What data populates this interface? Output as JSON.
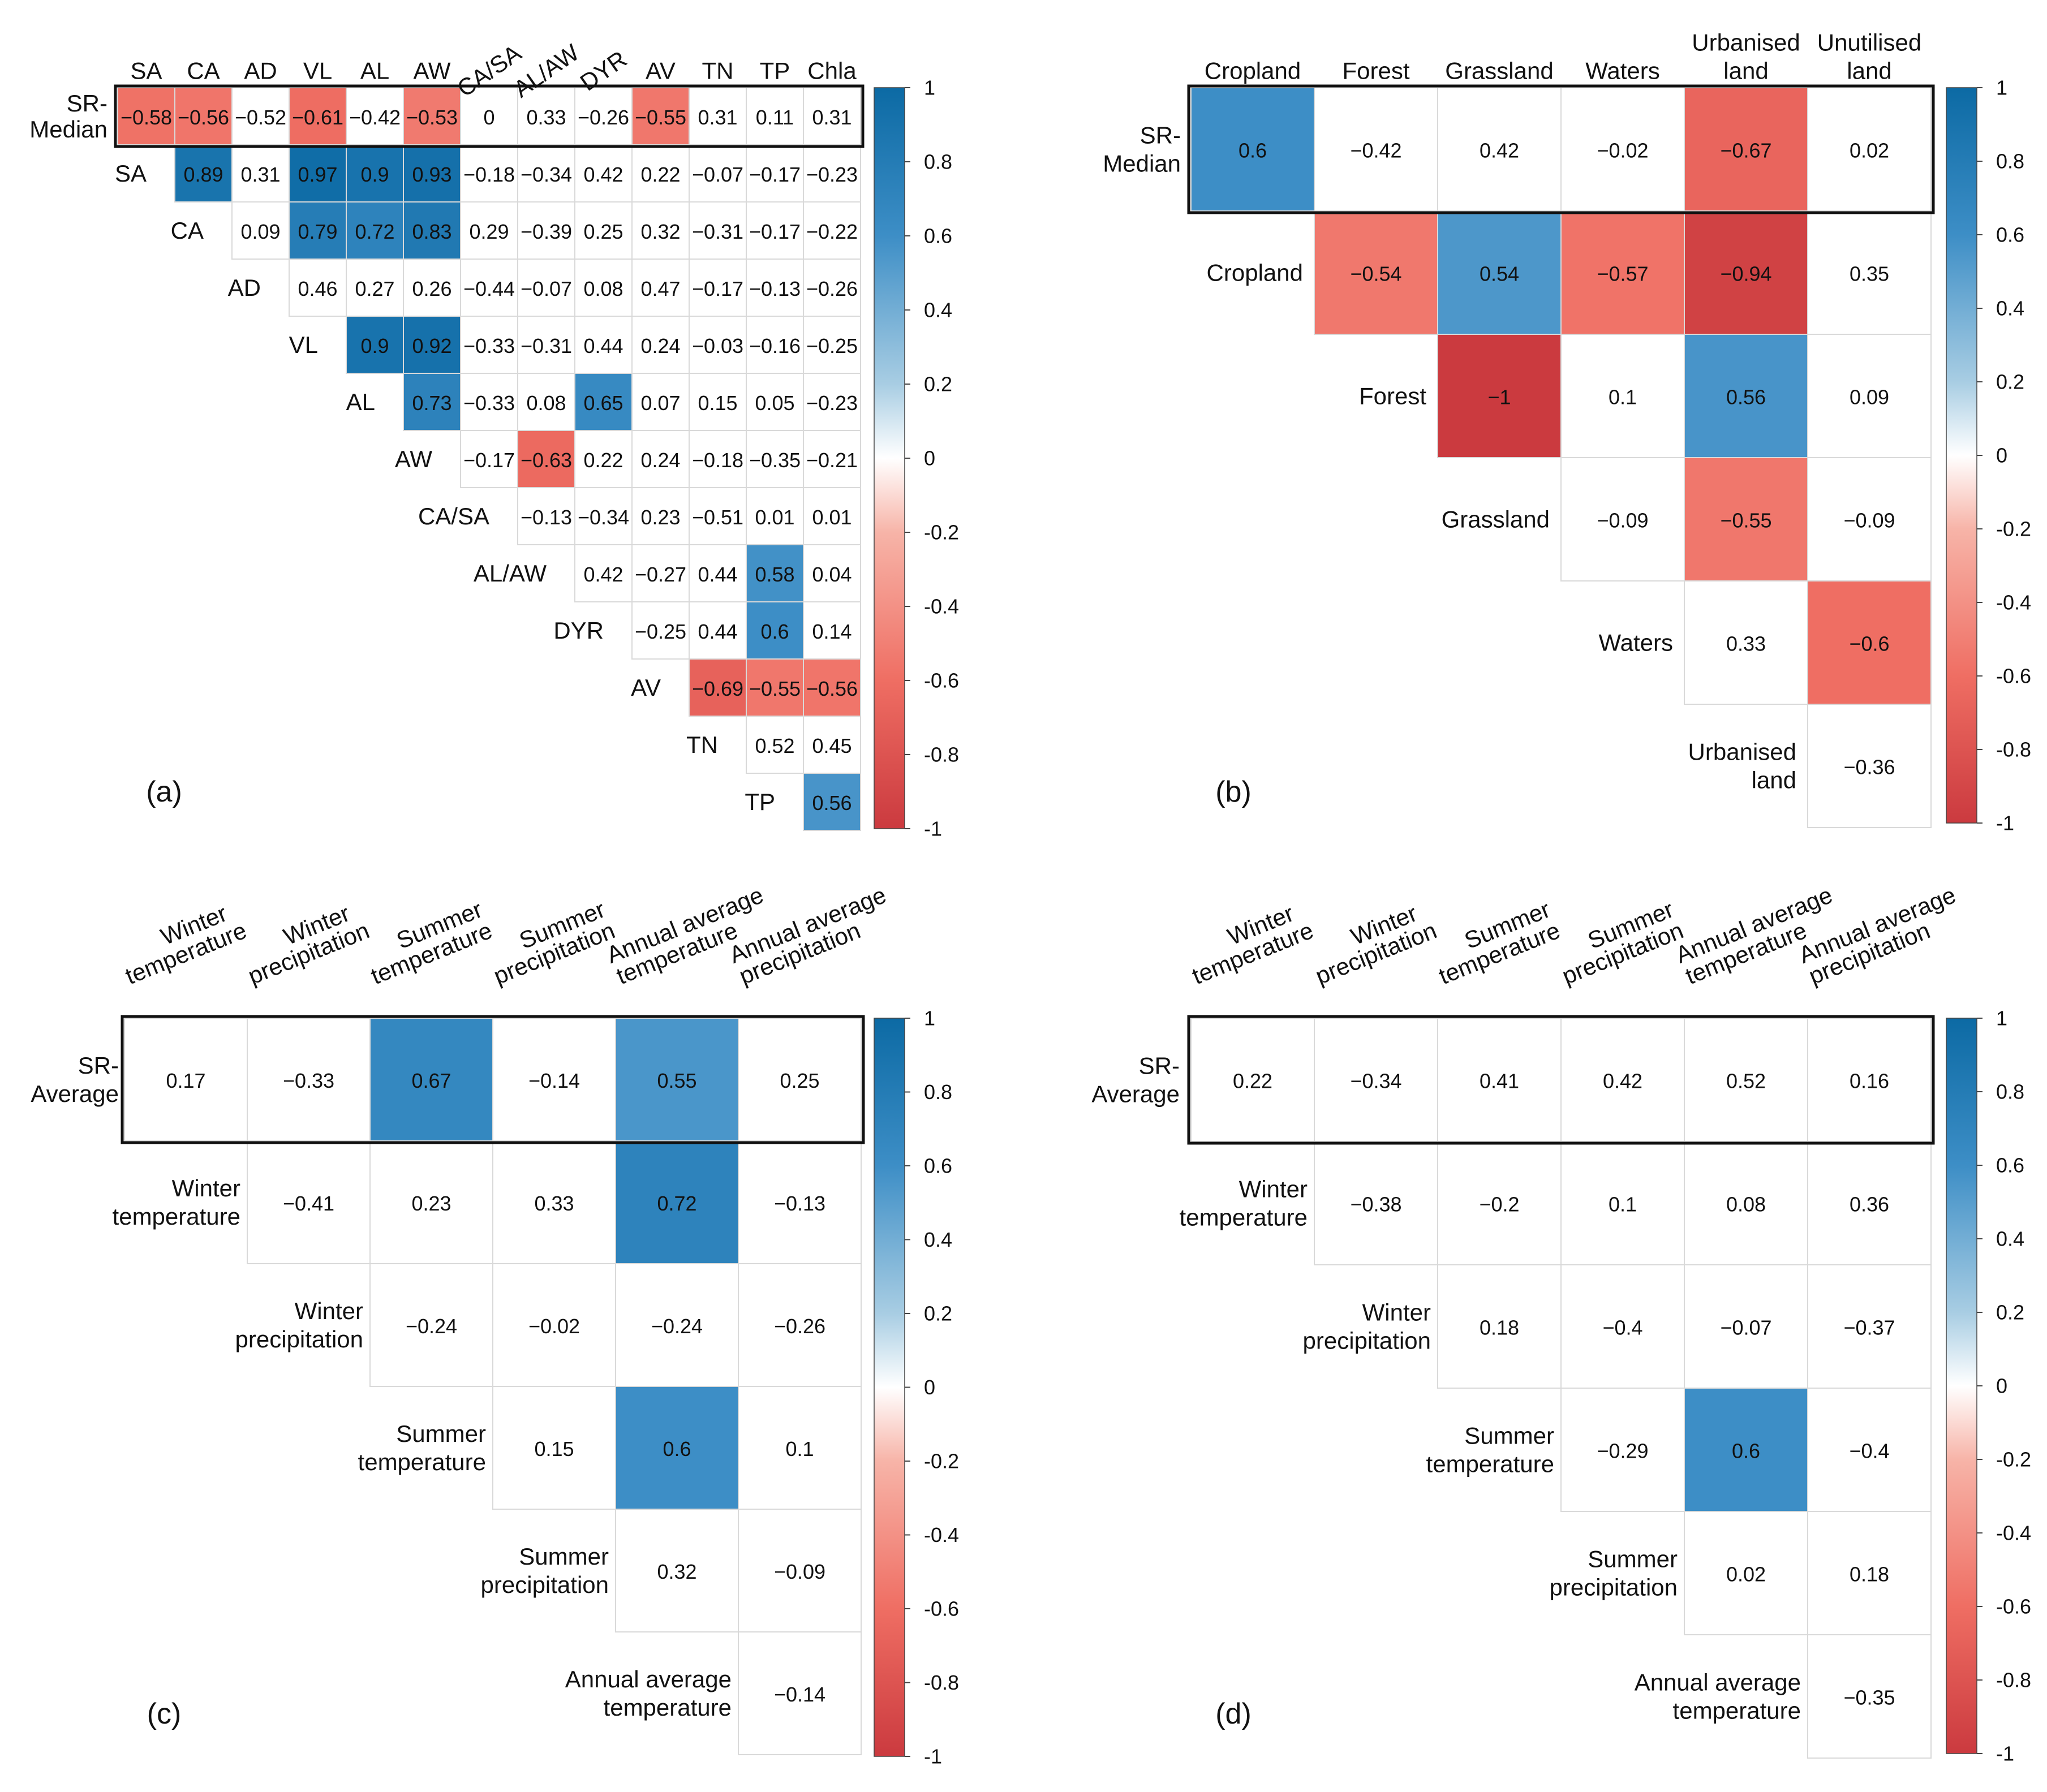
{
  "colors": {
    "neg_strong": "#cb3a3f",
    "neutral": "#ffffff",
    "pos_strong": "#0c6aa4",
    "cell_border": "#d9d9d9",
    "frame": "#111111"
  },
  "colorbar": {
    "ticks": [
      "1",
      "0.8",
      "0.6",
      "0.4",
      "0.2",
      "0",
      "-0.2",
      "-0.4",
      "-0.6",
      "-0.8",
      "-1"
    ]
  },
  "chart_data": [
    {
      "type": "heatmap",
      "panel": "(a)",
      "legend": "right",
      "highlight_row_label": [
        "SR-",
        "Median"
      ],
      "column_labels": [
        "SA",
        "CA",
        "AD",
        "VL",
        "AL",
        "AW",
        "CA/SA",
        "AL/AW",
        "DYR",
        "AV",
        "TN",
        "TP",
        "Chla"
      ],
      "row_labels": [
        [
          "SA"
        ],
        [
          "CA"
        ],
        [
          "AD"
        ],
        [
          "VL"
        ],
        [
          "AL"
        ],
        [
          "AW"
        ],
        [
          "CA/SA"
        ],
        [
          "AL/AW"
        ],
        [
          "DYR"
        ],
        [
          "AV"
        ],
        [
          "TN"
        ],
        [
          "TP"
        ]
      ],
      "highlight_row": [
        -0.58,
        -0.56,
        -0.52,
        -0.61,
        -0.42,
        -0.53,
        0,
        0.33,
        -0.26,
        -0.55,
        0.31,
        0.11,
        0.31
      ],
      "rows": [
        [
          0.89,
          0.31,
          0.97,
          0.9,
          0.93,
          -0.18,
          -0.34,
          0.42,
          0.22,
          -0.07,
          -0.17,
          -0.23
        ],
        [
          0.09,
          0.79,
          0.72,
          0.83,
          0.29,
          -0.39,
          0.25,
          0.32,
          -0.31,
          -0.17,
          -0.22
        ],
        [
          0.46,
          0.27,
          0.26,
          -0.44,
          -0.07,
          0.08,
          0.47,
          -0.17,
          -0.13,
          -0.26
        ],
        [
          0.9,
          0.92,
          -0.33,
          -0.31,
          0.44,
          0.24,
          -0.03,
          -0.16,
          -0.25
        ],
        [
          0.73,
          -0.33,
          0.08,
          0.65,
          0.07,
          0.15,
          0.05,
          -0.23
        ],
        [
          -0.17,
          -0.63,
          0.22,
          0.24,
          -0.18,
          -0.35,
          -0.21
        ],
        [
          -0.13,
          -0.34,
          0.23,
          -0.51,
          0.01,
          0.01
        ],
        [
          0.42,
          -0.27,
          0.44,
          0.58,
          0.04
        ],
        [
          -0.25,
          0.44,
          0.6,
          0.14
        ],
        [
          -0.69,
          -0.55,
          -0.56
        ],
        [
          0.52,
          0.45
        ],
        [
          0.56
        ]
      ]
    },
    {
      "type": "heatmap",
      "panel": "(b)",
      "legend": "right",
      "highlight_row_label": [
        "SR-",
        "Median"
      ],
      "column_labels": [
        [
          "Cropland"
        ],
        [
          "Forest"
        ],
        [
          "Grassland"
        ],
        [
          "Waters"
        ],
        [
          "Urbanised",
          "land"
        ],
        [
          "Unutilised",
          "land"
        ]
      ],
      "row_labels": [
        [
          "Cropland"
        ],
        [
          "Forest"
        ],
        [
          "Grassland"
        ],
        [
          "Waters"
        ],
        [
          "Urbanised",
          "land"
        ]
      ],
      "highlight_row": [
        0.6,
        -0.42,
        0.42,
        -0.02,
        -0.67,
        0.02
      ],
      "rows": [
        [
          -0.54,
          0.54,
          -0.57,
          -0.94,
          0.35
        ],
        [
          -1,
          0.1,
          0.56,
          0.09
        ],
        [
          -0.09,
          -0.55,
          -0.09
        ],
        [
          0.33,
          -0.6
        ],
        [
          -0.36
        ]
      ]
    },
    {
      "type": "heatmap",
      "panel": "(c)",
      "legend": "right",
      "highlight_row_label": [
        "SR-",
        "Average"
      ],
      "column_labels": [
        [
          "Winter",
          "temperature"
        ],
        [
          "Winter",
          "precipitation"
        ],
        [
          "Summer",
          "temperature"
        ],
        [
          "Summer",
          "precipitation"
        ],
        [
          "Annual average",
          "temperature"
        ],
        [
          "Annual average",
          "precipitation"
        ]
      ],
      "row_labels": [
        [
          "Winter",
          "temperature"
        ],
        [
          "Winter",
          "precipitation"
        ],
        [
          "Summer",
          "temperature"
        ],
        [
          "Summer",
          "precipitation"
        ],
        [
          "Annual average",
          "temperature"
        ]
      ],
      "highlight_row": [
        0.17,
        -0.33,
        0.67,
        -0.14,
        0.55,
        0.25
      ],
      "rows": [
        [
          -0.41,
          0.23,
          0.33,
          0.72,
          -0.13
        ],
        [
          -0.24,
          -0.02,
          -0.24,
          -0.26
        ],
        [
          0.15,
          0.6,
          0.1
        ],
        [
          0.32,
          -0.09
        ],
        [
          -0.14
        ]
      ]
    },
    {
      "type": "heatmap",
      "panel": "(d)",
      "legend": "right",
      "highlight_row_label": [
        "SR-",
        "Average"
      ],
      "column_labels": [
        [
          "Winter",
          "temperature"
        ],
        [
          "Winter",
          "precipitation"
        ],
        [
          "Summer",
          "temperature"
        ],
        [
          "Summer",
          "precipitation"
        ],
        [
          "Annual average",
          "temperature"
        ],
        [
          "Annual average",
          "precipitation"
        ]
      ],
      "row_labels": [
        [
          "Winter",
          "temperature"
        ],
        [
          "Winter",
          "precipitation"
        ],
        [
          "Summer",
          "temperature"
        ],
        [
          "Summer",
          "precipitation"
        ],
        [
          "Annual average",
          "temperature"
        ]
      ],
      "highlight_row": [
        0.22,
        -0.34,
        0.41,
        0.42,
        0.52,
        0.16
      ],
      "rows": [
        [
          -0.38,
          -0.2,
          0.1,
          0.08,
          0.36
        ],
        [
          0.18,
          -0.4,
          -0.07,
          -0.37
        ],
        [
          -0.29,
          0.6,
          -0.4
        ],
        [
          0.02,
          0.18
        ],
        [
          -0.35
        ]
      ]
    }
  ]
}
